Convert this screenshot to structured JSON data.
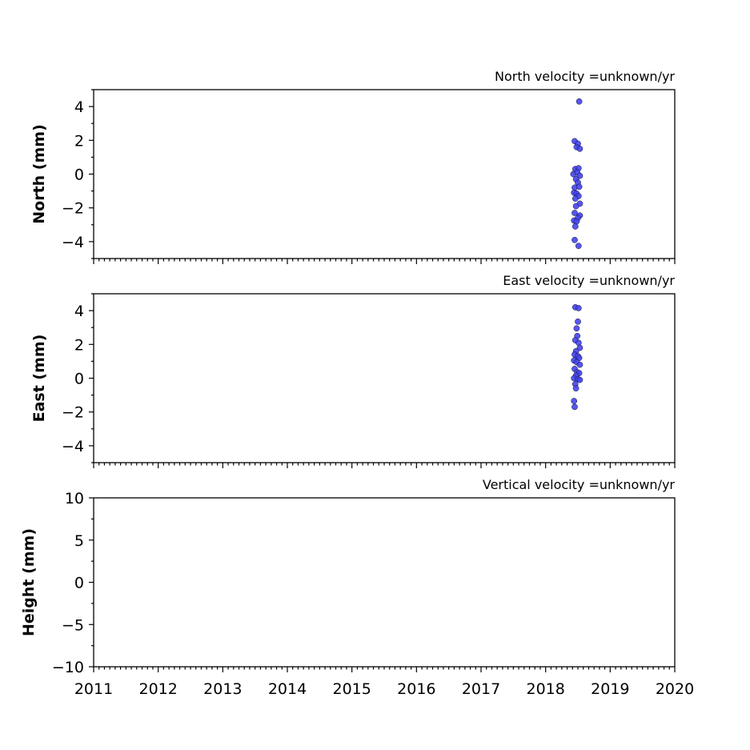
{
  "chart_data": [
    {
      "type": "scatter",
      "title": "North velocity =unknown/yr",
      "ylabel": "North (mm)",
      "xlim": [
        2011,
        2020
      ],
      "ylim": [
        -5,
        5
      ],
      "y_ticks": [
        -4,
        -2,
        0,
        2,
        4
      ],
      "y_tick_labels": [
        "−4",
        "−2",
        "0",
        "2",
        "4"
      ],
      "show_x_tick_labels": false,
      "series": [
        {
          "color": "#4444ee",
          "points": [
            [
              2018.52,
              4.3
            ],
            [
              2018.45,
              1.95
            ],
            [
              2018.5,
              1.8
            ],
            [
              2018.48,
              1.6
            ],
            [
              2018.53,
              1.5
            ],
            [
              2018.46,
              0.3
            ],
            [
              2018.51,
              0.35
            ],
            [
              2018.43,
              0.0
            ],
            [
              2018.49,
              0.1
            ],
            [
              2018.53,
              -0.1
            ],
            [
              2018.47,
              -0.3
            ],
            [
              2018.5,
              -0.5
            ],
            [
              2018.45,
              -0.8
            ],
            [
              2018.52,
              -0.75
            ],
            [
              2018.44,
              -1.1
            ],
            [
              2018.48,
              -1.15
            ],
            [
              2018.51,
              -1.3
            ],
            [
              2018.46,
              -1.45
            ],
            [
              2018.53,
              -1.75
            ],
            [
              2018.47,
              -1.9
            ],
            [
              2018.45,
              -2.3
            ],
            [
              2018.53,
              -2.45
            ],
            [
              2018.5,
              -2.6
            ],
            [
              2018.44,
              -2.75
            ],
            [
              2018.48,
              -2.8
            ],
            [
              2018.46,
              -3.1
            ],
            [
              2018.45,
              -3.9
            ],
            [
              2018.51,
              -4.25
            ]
          ]
        }
      ]
    },
    {
      "type": "scatter",
      "title": "East velocity =unknown/yr",
      "ylabel": "East (mm)",
      "xlim": [
        2011,
        2020
      ],
      "ylim": [
        -5,
        5
      ],
      "y_ticks": [
        -4,
        -2,
        0,
        2,
        4
      ],
      "y_tick_labels": [
        "−4",
        "−2",
        "0",
        "2",
        "4"
      ],
      "show_x_tick_labels": false,
      "series": [
        {
          "color": "#4444ee",
          "points": [
            [
              2018.46,
              4.2
            ],
            [
              2018.51,
              4.15
            ],
            [
              2018.5,
              3.35
            ],
            [
              2018.48,
              2.95
            ],
            [
              2018.49,
              2.5
            ],
            [
              2018.46,
              2.25
            ],
            [
              2018.51,
              2.1
            ],
            [
              2018.53,
              1.8
            ],
            [
              2018.47,
              1.6
            ],
            [
              2018.45,
              1.4
            ],
            [
              2018.5,
              1.3
            ],
            [
              2018.44,
              1.05
            ],
            [
              2018.52,
              1.2
            ],
            [
              2018.48,
              0.95
            ],
            [
              2018.53,
              0.8
            ],
            [
              2018.45,
              0.55
            ],
            [
              2018.49,
              0.35
            ],
            [
              2018.52,
              0.3
            ],
            [
              2018.47,
              0.15
            ],
            [
              2018.44,
              0.0
            ],
            [
              2018.5,
              -0.05
            ],
            [
              2018.53,
              -0.1
            ],
            [
              2018.46,
              -0.35
            ],
            [
              2018.47,
              -0.6
            ],
            [
              2018.44,
              -1.35
            ],
            [
              2018.45,
              -1.7
            ]
          ]
        }
      ]
    },
    {
      "type": "scatter",
      "title": "Vertical velocity =unknown/yr",
      "ylabel": "Height (mm)",
      "xlim": [
        2011,
        2020
      ],
      "ylim": [
        -10,
        10
      ],
      "y_ticks": [
        -10,
        -5,
        0,
        5,
        10
      ],
      "y_tick_labels": [
        "−10",
        "−5",
        "0",
        "5",
        "10"
      ],
      "show_x_tick_labels": true,
      "x_ticks": [
        2011,
        2012,
        2013,
        2014,
        2015,
        2016,
        2017,
        2018,
        2019,
        2020
      ],
      "x_tick_labels": [
        "2011",
        "2012",
        "2013",
        "2014",
        "2015",
        "2016",
        "2017",
        "2018",
        "2019",
        "2020"
      ],
      "series": [
        {
          "color": "#4444ee",
          "points": []
        }
      ]
    }
  ]
}
